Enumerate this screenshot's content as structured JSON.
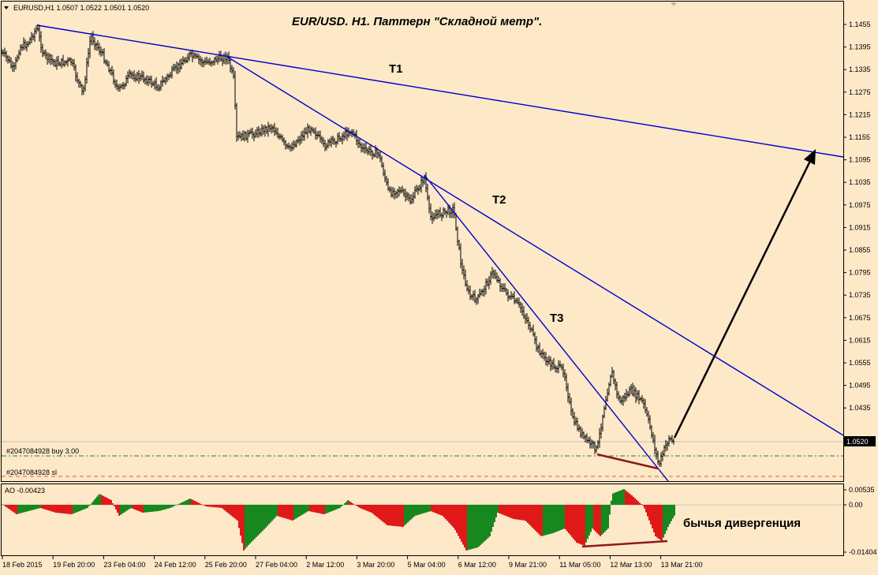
{
  "header": {
    "symbol_info": "EURUSD,H1  1.0507 1.0522 1.0501 1.0520",
    "title": "EUR/USD. H1. Паттерн \"Складной метр\"."
  },
  "main_chart": {
    "price_axis_labels": [
      "1.1455",
      "1.1395",
      "1.1335",
      "1.1275",
      "1.1215",
      "1.1155",
      "1.1095",
      "1.1035",
      "1.0975",
      "1.0915",
      "1.0855",
      "1.0795",
      "1.0735",
      "1.0675",
      "1.0615",
      "1.0555",
      "1.0495",
      "1.0435"
    ],
    "current_price": "1.0520",
    "trendlines": [
      {
        "name": "T1",
        "label": "T1"
      },
      {
        "name": "T2",
        "label": "T2"
      },
      {
        "name": "T3",
        "label": "T3"
      }
    ],
    "orders": {
      "buy_label": "#2047084928 buy 3.00",
      "sl_label": "#2047084928 sl"
    },
    "colors": {
      "background": "#fde8c8",
      "trendline": "#0000cc",
      "divergence": "#8b1a1a",
      "arrow": "#000000",
      "price_line": "#c0c0c0",
      "buy_line": "#2e7d32",
      "sl_line": "#e05a2a"
    }
  },
  "indicator": {
    "label": "AO -0.00423",
    "axis_labels": [
      "0.00535",
      "0.00",
      "-0.01404"
    ],
    "annotation": "бычья дивергенция",
    "colors": {
      "up": "#16881e",
      "down": "#e01818"
    }
  },
  "time_axis": [
    "18 Feb 2015",
    "19 Feb 20:00",
    "23 Feb 04:00",
    "24 Feb 12:00",
    "25 Feb 20:00",
    "27 Feb 04:00",
    "2 Mar 12:00",
    "3 Mar 20:00",
    "5 Mar 04:00",
    "6 Mar 12:00",
    "9 Mar 21:00",
    "11 Mar 05:00",
    "12 Mar 13:00",
    "13 Mar 21:00"
  ]
}
